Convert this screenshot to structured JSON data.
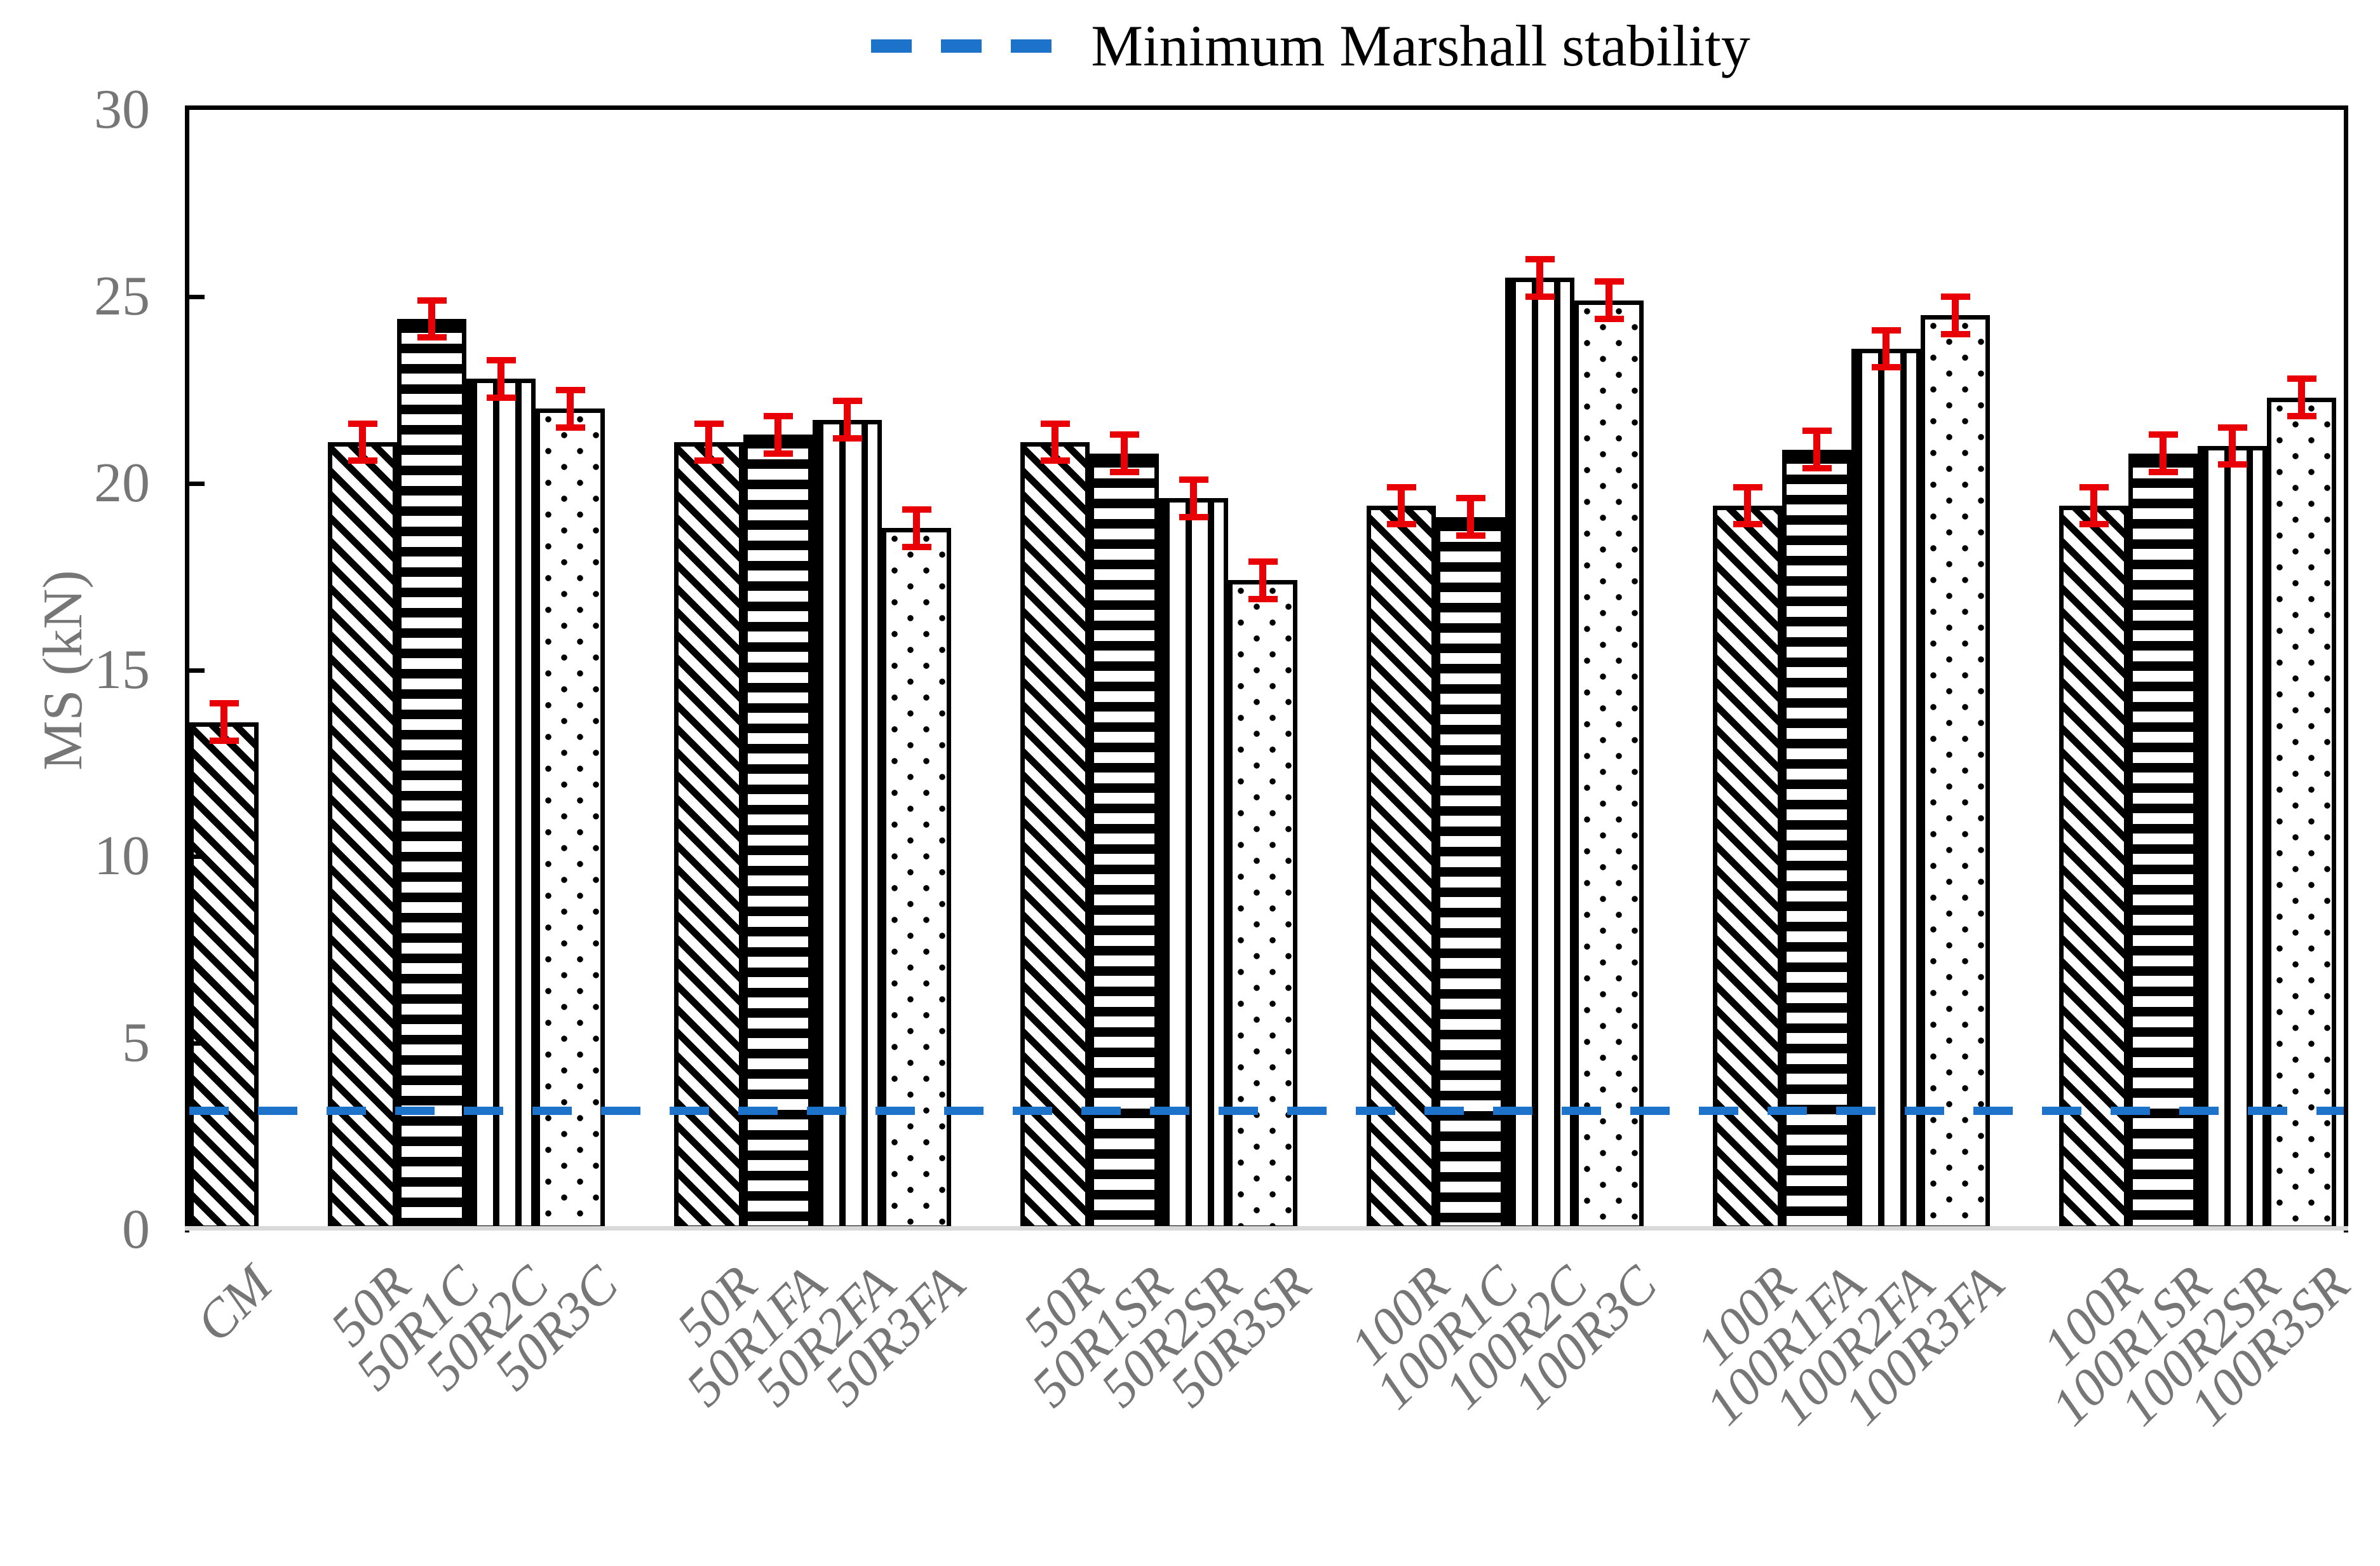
{
  "chart_data": {
    "type": "bar",
    "ylabel": "MS (kN)",
    "ylim": [
      0,
      30
    ],
    "yticks": [
      0,
      5,
      10,
      15,
      20,
      25,
      30
    ],
    "grid": false,
    "legend_position": "top-center",
    "reference_line": {
      "label": "Minimum Marshall stability",
      "value": 3.2,
      "style": "dashed",
      "color": "#1c73c9"
    },
    "colors": {
      "bar_fill": "#000000",
      "bar_background": "#ffffff",
      "error_bar": "#e90007",
      "tick_label": "#767676",
      "axis_baseline": "#d9d9d9",
      "axis_spine": "#000000"
    },
    "groups": [
      {
        "bars": [
          {
            "label": "CM",
            "value": 13.6,
            "error": 0.5,
            "pattern": "diagonal"
          }
        ]
      },
      {
        "bars": [
          {
            "label": "50R",
            "value": 21.1,
            "error": 0.5,
            "pattern": "diagonal"
          },
          {
            "label": "50R1C",
            "value": 24.4,
            "error": 0.5,
            "pattern": "horizontal"
          },
          {
            "label": "50R2C",
            "value": 22.8,
            "error": 0.5,
            "pattern": "vertical"
          },
          {
            "label": "50R3C",
            "value": 22.0,
            "error": 0.5,
            "pattern": "dotted"
          }
        ]
      },
      {
        "bars": [
          {
            "label": "50R",
            "value": 21.1,
            "error": 0.5,
            "pattern": "diagonal"
          },
          {
            "label": "50R1FA",
            "value": 21.3,
            "error": 0.5,
            "pattern": "horizontal"
          },
          {
            "label": "50R2FA",
            "value": 21.7,
            "error": 0.5,
            "pattern": "vertical"
          },
          {
            "label": "50R3FA",
            "value": 18.8,
            "error": 0.5,
            "pattern": "dotted"
          }
        ]
      },
      {
        "bars": [
          {
            "label": "50R",
            "value": 21.1,
            "error": 0.5,
            "pattern": "diagonal"
          },
          {
            "label": "50R1SR",
            "value": 20.8,
            "error": 0.5,
            "pattern": "horizontal"
          },
          {
            "label": "50R2SR",
            "value": 19.6,
            "error": 0.5,
            "pattern": "vertical"
          },
          {
            "label": "50R3SR",
            "value": 17.4,
            "error": 0.5,
            "pattern": "dotted"
          }
        ]
      },
      {
        "bars": [
          {
            "label": "100R",
            "value": 19.4,
            "error": 0.5,
            "pattern": "diagonal"
          },
          {
            "label": "100R1C",
            "value": 19.1,
            "error": 0.5,
            "pattern": "horizontal"
          },
          {
            "label": "100R2C",
            "value": 25.5,
            "error": 0.5,
            "pattern": "vertical"
          },
          {
            "label": "100R3C",
            "value": 24.9,
            "error": 0.5,
            "pattern": "dotted"
          }
        ]
      },
      {
        "bars": [
          {
            "label": "100R",
            "value": 19.4,
            "error": 0.5,
            "pattern": "diagonal"
          },
          {
            "label": "100R1FA",
            "value": 20.9,
            "error": 0.5,
            "pattern": "horizontal"
          },
          {
            "label": "100R2FA",
            "value": 23.6,
            "error": 0.5,
            "pattern": "vertical"
          },
          {
            "label": "100R3FA",
            "value": 24.5,
            "error": 0.5,
            "pattern": "dotted"
          }
        ]
      },
      {
        "bars": [
          {
            "label": "100R",
            "value": 19.4,
            "error": 0.5,
            "pattern": "diagonal"
          },
          {
            "label": "100R1SR",
            "value": 20.8,
            "error": 0.5,
            "pattern": "horizontal"
          },
          {
            "label": "100R2SR",
            "value": 21.0,
            "error": 0.5,
            "pattern": "vertical"
          },
          {
            "label": "100R3SR",
            "value": 22.3,
            "error": 0.5,
            "pattern": "dotted"
          }
        ]
      }
    ]
  }
}
